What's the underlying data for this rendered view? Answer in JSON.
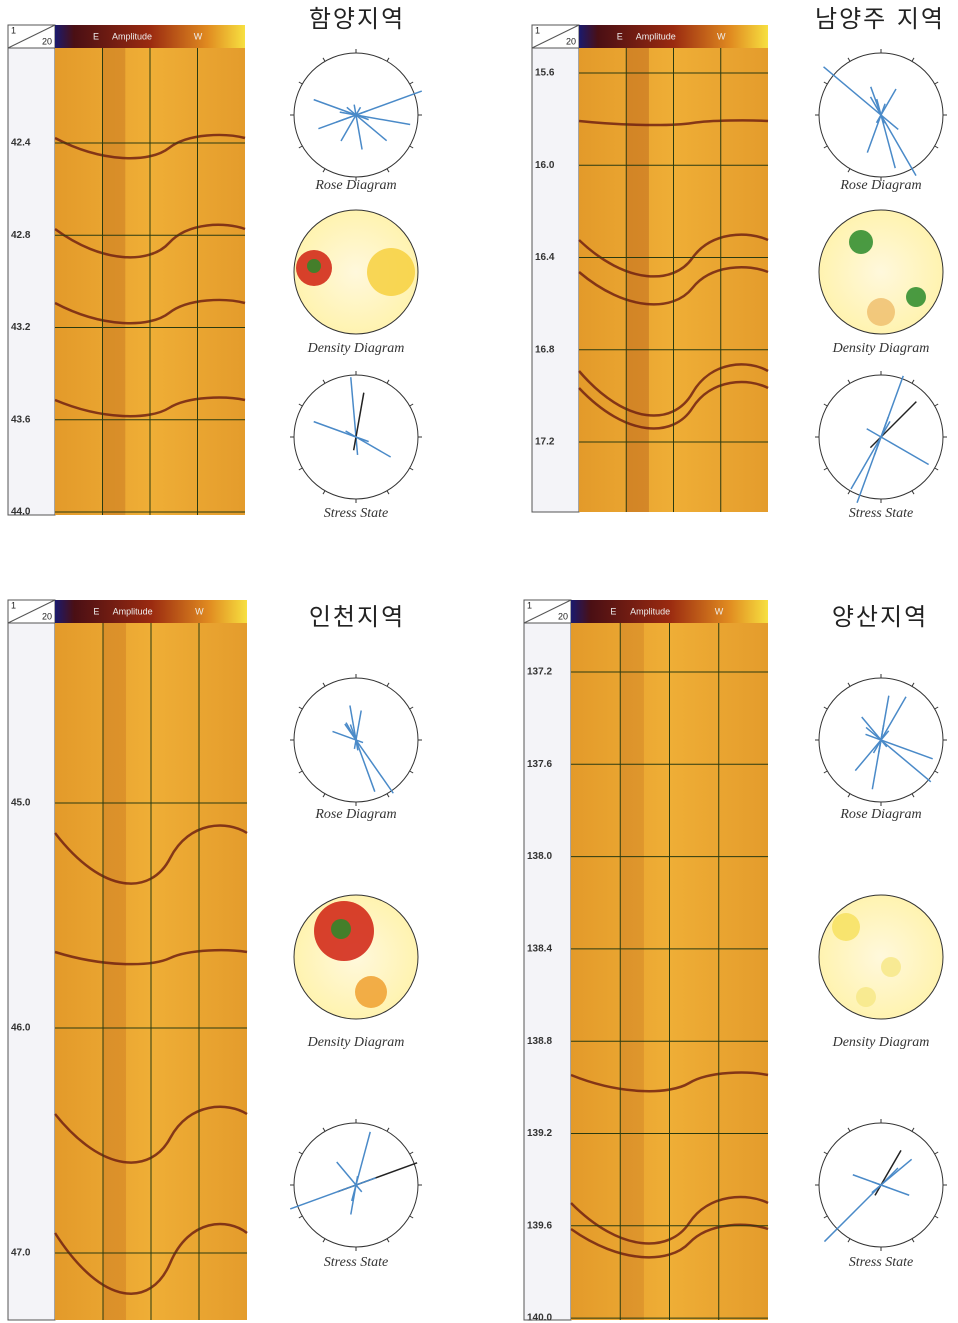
{
  "panels": [
    {
      "title": "함양지역",
      "header": {
        "scale_top": "1",
        "scale_bottom": "20",
        "left": "E",
        "label": "Amplitude",
        "right": "W"
      },
      "depths": [
        "42.4",
        "42.8",
        "43.2",
        "43.6",
        "44.0"
      ],
      "diagrams": [
        "Rose Diagram",
        "Density Diagram",
        "Stress State"
      ]
    },
    {
      "title": "남양주 지역",
      "header": {
        "scale_top": "1",
        "scale_bottom": "20",
        "left": "E",
        "label": "Amplitude",
        "right": "W"
      },
      "depths": [
        "15.6",
        "16.0",
        "16.4",
        "16.8",
        "17.2"
      ],
      "diagrams": [
        "Rose Diagram",
        "Density Diagram",
        "Stress State"
      ]
    },
    {
      "title": "인천지역",
      "header": {
        "scale_top": "1",
        "scale_bottom": "20",
        "left": "E",
        "label": "Amplitude",
        "right": "W"
      },
      "depths": [
        "45.0",
        "46.0",
        "47.0"
      ],
      "diagrams": [
        "Rose Diagram",
        "Density Diagram",
        "Stress State"
      ]
    },
    {
      "title": "양산지역",
      "header": {
        "scale_top": "1",
        "scale_bottom": "20",
        "left": "E",
        "label": "Amplitude",
        "right": "W"
      },
      "depths": [
        "137.2",
        "137.6",
        "138.0",
        "138.4",
        "138.8",
        "139.2",
        "139.6",
        "140.0"
      ],
      "diagrams": [
        "Rose Diagram",
        "Density Diagram",
        "Stress State"
      ]
    }
  ]
}
